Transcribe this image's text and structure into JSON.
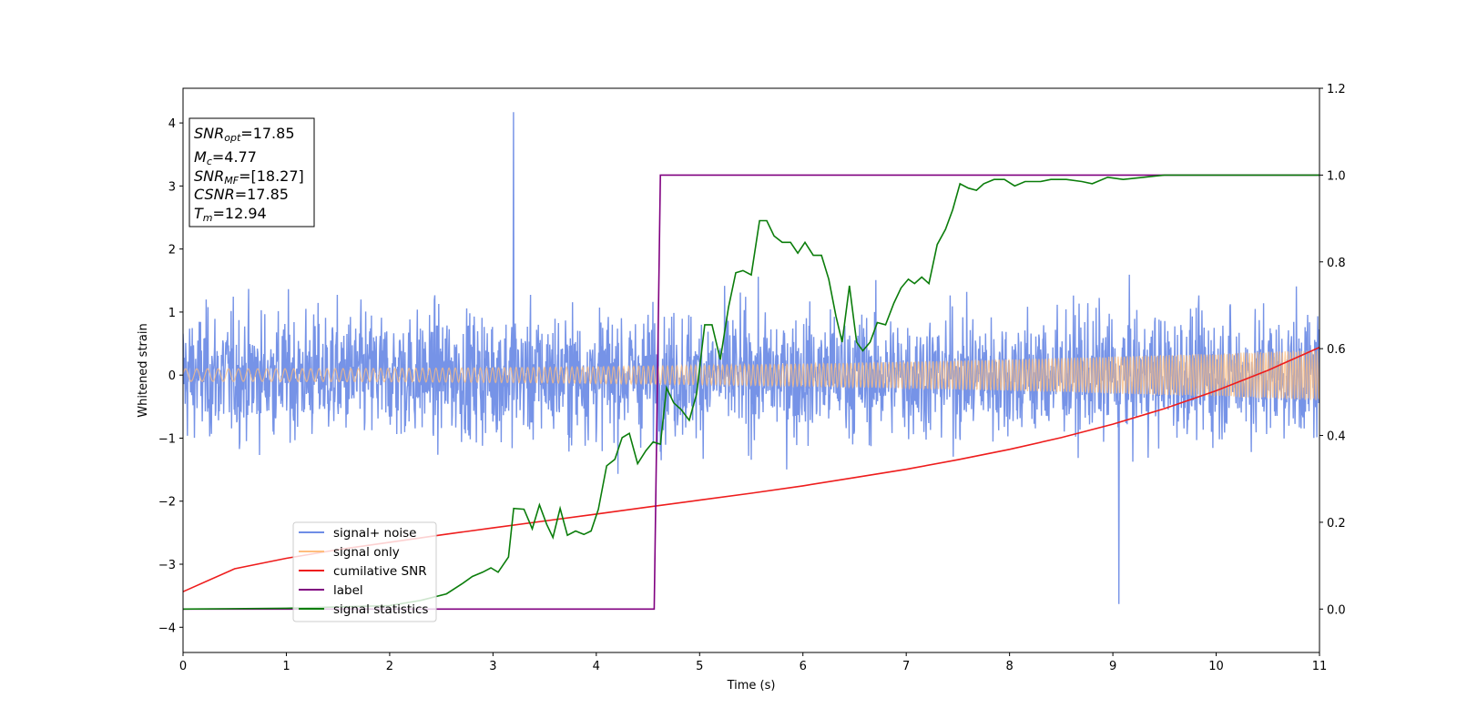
{
  "chart_data": {
    "type": "line",
    "title": "",
    "xlabel": "Time (s)",
    "ylabel": "Whitened strain",
    "xlim": [
      0,
      11
    ],
    "ylim": [
      -4.4,
      4.55
    ],
    "y2lim": [
      -0.1,
      1.2
    ],
    "xticks": [
      "0",
      "1",
      "2",
      "3",
      "4",
      "5",
      "6",
      "7",
      "8",
      "9",
      "10",
      "11"
    ],
    "yticks": [
      "-4",
      "-3",
      "-2",
      "-1",
      "0",
      "1",
      "2",
      "3",
      "4"
    ],
    "y2ticks": [
      "0.0",
      "0.2",
      "0.4",
      "0.6",
      "0.8",
      "1.0",
      "1.2"
    ],
    "grid": false,
    "legend_position": "lower-left",
    "info_box": {
      "line1_base": "SNR",
      "line1_sub": "opt",
      "line1_value": "=17.85",
      "line2_base": "M",
      "line2_sub": "c",
      "line2_value": "=4.77",
      "line3_base": "SNR",
      "line3_sub": "MF",
      "line3_value": "=[18.27]",
      "line4_base": "CSNR",
      "line4_value": "=17.85",
      "line5_base": "T",
      "line5_sub": "m",
      "line5_value": "=12.94"
    },
    "series": [
      {
        "name": "signal+ noise",
        "color": "#6f8de6",
        "axis": "left",
        "kind": "noise",
        "spread": 1.0,
        "max_excursion": [
          -3.63,
          4.17
        ]
      },
      {
        "name": "signal only",
        "color": "#ffbe7d",
        "axis": "left",
        "kind": "chirp",
        "amplitude_start": 0.1,
        "amplitude_end": 0.4
      },
      {
        "name": "cumilative SNR",
        "color": "#ee1c1c",
        "axis": "right",
        "x": [
          0,
          0.5,
          1,
          1.5,
          2,
          2.5,
          3,
          3.5,
          4,
          4.5,
          5,
          5.5,
          6,
          6.5,
          7,
          7.5,
          8,
          8.5,
          9,
          9.5,
          10,
          10.5,
          11
        ],
        "y": [
          0.04,
          0.093,
          0.117,
          0.137,
          0.154,
          0.171,
          0.187,
          0.203,
          0.219,
          0.235,
          0.251,
          0.267,
          0.284,
          0.303,
          0.322,
          0.344,
          0.368,
          0.395,
          0.426,
          0.462,
          0.503,
          0.55,
          0.603
        ]
      },
      {
        "name": "label",
        "color": "#800080",
        "axis": "right",
        "x": [
          0,
          4.56,
          4.62,
          11
        ],
        "y": [
          0,
          0,
          1,
          1
        ]
      },
      {
        "name": "signal statistics",
        "color": "#0b7d0b",
        "axis": "right",
        "x": [
          0,
          1,
          2,
          2.3,
          2.55,
          2.7,
          2.8,
          2.9,
          2.98,
          3.05,
          3.15,
          3.2,
          3.3,
          3.38,
          3.45,
          3.52,
          3.58,
          3.65,
          3.72,
          3.8,
          3.88,
          3.95,
          4.02,
          4.1,
          4.18,
          4.25,
          4.32,
          4.4,
          4.48,
          4.55,
          4.62,
          4.68,
          4.75,
          4.82,
          4.9,
          4.97,
          5.05,
          5.12,
          5.2,
          5.28,
          5.35,
          5.42,
          5.5,
          5.58,
          5.65,
          5.72,
          5.8,
          5.88,
          5.95,
          6.02,
          6.1,
          6.18,
          6.25,
          6.32,
          6.38,
          6.45,
          6.52,
          6.58,
          6.65,
          6.72,
          6.8,
          6.88,
          6.95,
          7.02,
          7.08,
          7.15,
          7.22,
          7.3,
          7.38,
          7.45,
          7.52,
          7.6,
          7.68,
          7.75,
          7.85,
          7.95,
          8.05,
          8.15,
          8.3,
          8.4,
          8.55,
          8.7,
          8.8,
          8.95,
          9.1,
          9.3,
          9.5,
          9.7,
          10,
          10.5,
          11
        ],
        "y": [
          0,
          0.002,
          0.008,
          0.02,
          0.035,
          0.058,
          0.075,
          0.085,
          0.095,
          0.085,
          0.12,
          0.232,
          0.23,
          0.185,
          0.24,
          0.195,
          0.165,
          0.232,
          0.17,
          0.18,
          0.172,
          0.18,
          0.23,
          0.33,
          0.345,
          0.395,
          0.405,
          0.335,
          0.365,
          0.385,
          0.38,
          0.51,
          0.475,
          0.46,
          0.435,
          0.495,
          0.655,
          0.655,
          0.575,
          0.695,
          0.775,
          0.78,
          0.77,
          0.895,
          0.895,
          0.86,
          0.845,
          0.845,
          0.82,
          0.845,
          0.815,
          0.815,
          0.76,
          0.675,
          0.615,
          0.745,
          0.615,
          0.595,
          0.615,
          0.66,
          0.655,
          0.705,
          0.74,
          0.76,
          0.75,
          0.765,
          0.75,
          0.84,
          0.875,
          0.92,
          0.98,
          0.97,
          0.965,
          0.98,
          0.99,
          0.99,
          0.975,
          0.985,
          0.985,
          0.99,
          0.99,
          0.985,
          0.98,
          0.995,
          0.99,
          0.995,
          1,
          1,
          1,
          1,
          1
        ]
      }
    ]
  }
}
